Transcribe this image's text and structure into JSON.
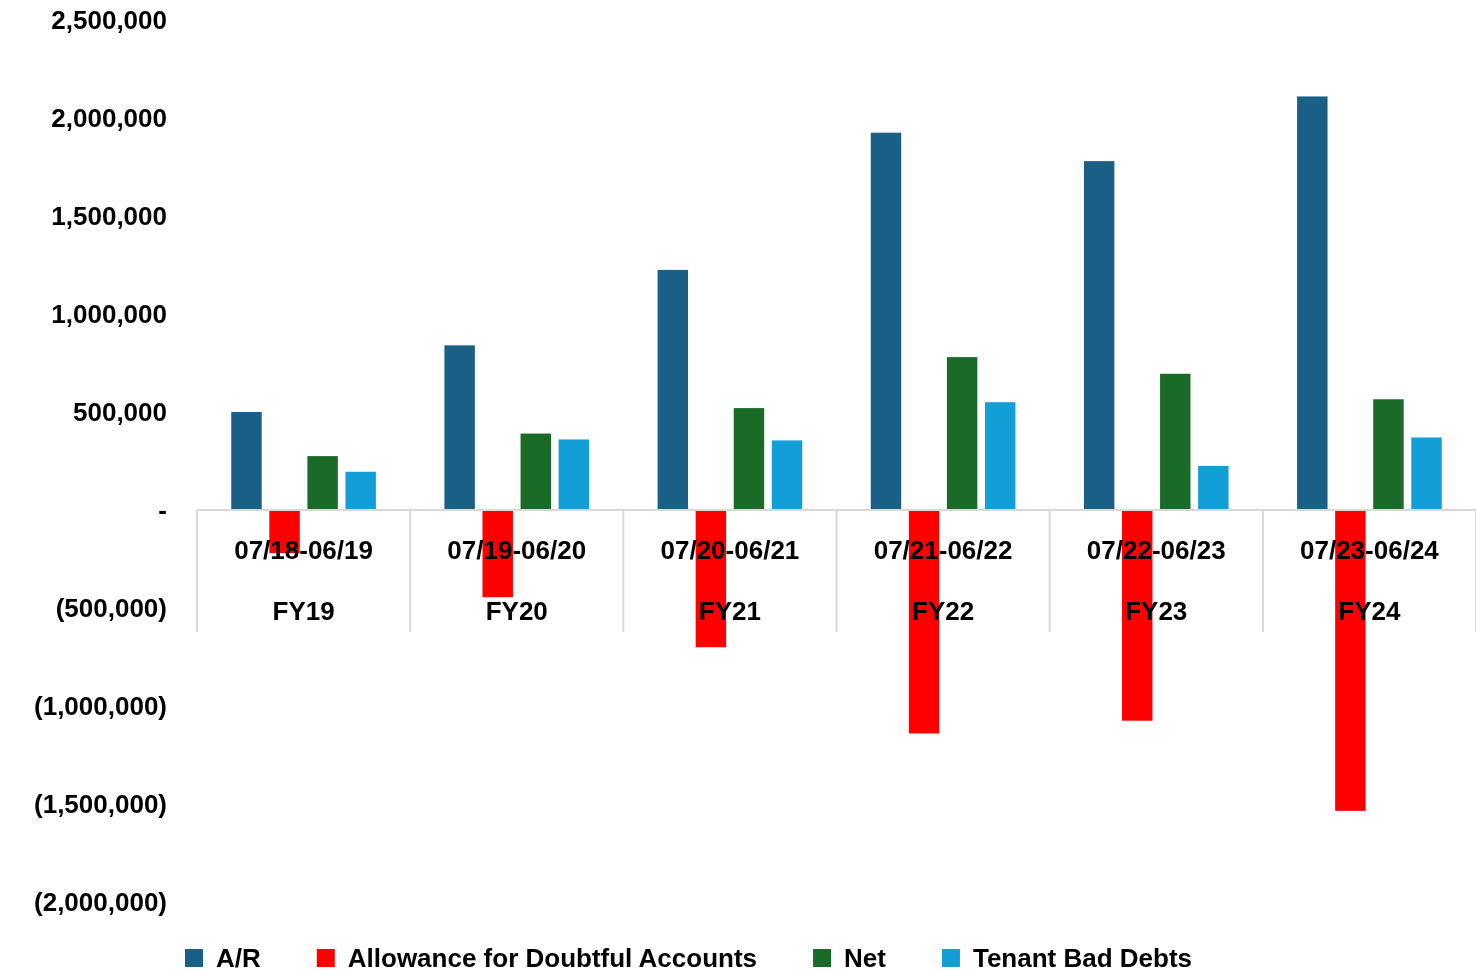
{
  "chart_data": {
    "type": "bar",
    "categories": [
      "07/18-06/19\nFY19",
      "07/19-06/20\nFY20",
      "07/20-06/21\nFY21",
      "07/21-06/22\nFY22",
      "07/22-06/23\nFY23",
      "07/23-06/24\nFY24"
    ],
    "series": [
      {
        "name": "A/R",
        "color": "#1a5f85",
        "values": [
          500000,
          840000,
          1225000,
          1925000,
          1780000,
          2110000
        ]
      },
      {
        "name": "Allowance for Doubtful Accounts",
        "color": "#ff0000",
        "values": [
          -220000,
          -445000,
          -700000,
          -1140000,
          -1075000,
          -1535000
        ]
      },
      {
        "name": "Net",
        "color": "#1b6b28",
        "values": [
          275000,
          390000,
          520000,
          780000,
          695000,
          565000
        ]
      },
      {
        "name": "Tenant Bad Debts",
        "color": "#129fd8",
        "values": [
          195000,
          360000,
          355000,
          550000,
          225000,
          370000
        ]
      }
    ],
    "ylim": [
      -2000000,
      2500000
    ],
    "yticks": [
      {
        "value": -2000000,
        "label": "(2,000,000)"
      },
      {
        "value": -1500000,
        "label": "(1,500,000)"
      },
      {
        "value": -1000000,
        "label": "(1,000,000)"
      },
      {
        "value": -500000,
        "label": "(500,000)"
      },
      {
        "value": 0,
        "label": "-"
      },
      {
        "value": 500000,
        "label": "500,000"
      },
      {
        "value": 1000000,
        "label": "1,000,000"
      },
      {
        "value": 1500000,
        "label": "1,500,000"
      },
      {
        "value": 2000000,
        "label": "2,000,000"
      },
      {
        "value": 2500000,
        "label": "2,500,000"
      }
    ],
    "grid": false,
    "legend": "bottom"
  }
}
